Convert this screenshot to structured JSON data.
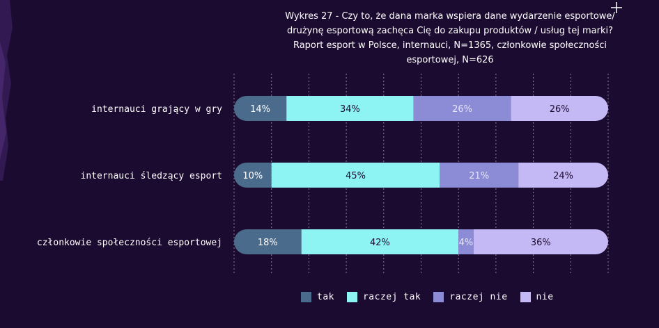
{
  "chart_data": {
    "type": "bar",
    "orientation": "horizontal",
    "stacked": true,
    "percent": true,
    "title_lines": [
      "Wykres 27 - Czy to, że dana marka wspiera dane wydarzenie esportowe/",
      "drużynę esportową zachęca Cię do zakupu produktów / usług tej marki?",
      "Raport esport w Polsce, internauci, N=1365, członkowie społeczności",
      "esportowej, N=626"
    ],
    "categories": [
      "internauci grający w gry",
      "internauci śledzący esport",
      "członkowie społeczności esportowej"
    ],
    "series": [
      {
        "name": "tak",
        "color": "#4a6b8c",
        "label_color": "#ffffff",
        "values": [
          14,
          10,
          18
        ],
        "labels": [
          "14%",
          "10%",
          "18%"
        ]
      },
      {
        "name": "raczej tak",
        "color": "#8ef3f3",
        "label_color": "#1c0b30",
        "values": [
          34,
          45,
          42
        ],
        "labels": [
          "34%",
          "45%",
          "42%"
        ]
      },
      {
        "name": "raczej nie",
        "color": "#8b8bd6",
        "label_color": "#e6e6f5",
        "values": [
          26,
          21,
          4
        ],
        "labels": [
          "26%",
          "21%",
          "4%"
        ]
      },
      {
        "name": "nie",
        "color": "#c4b8f5",
        "label_color": "#1c0b30",
        "values": [
          26,
          24,
          36
        ],
        "labels": [
          "26%",
          "24%",
          "36%"
        ]
      }
    ],
    "xlim": [
      0,
      100
    ],
    "grid": true,
    "legend_position": "bottom"
  },
  "decor": {
    "background": "#1c0b30",
    "grid_color": "#8a7d99",
    "corner_plus": "plus-icon"
  }
}
